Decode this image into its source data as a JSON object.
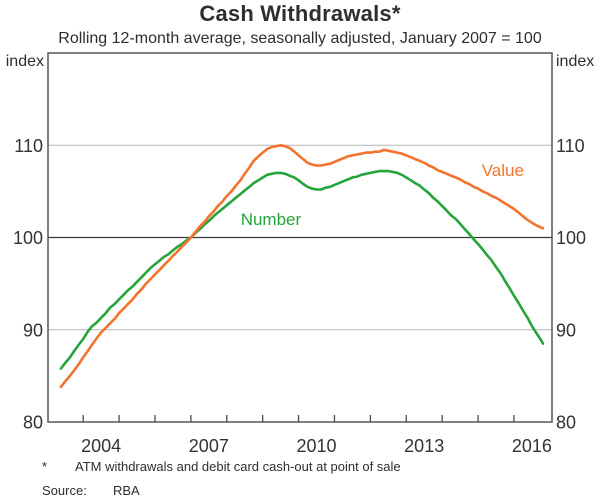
{
  "chart_data": {
    "type": "line",
    "title": "Cash Withdrawals*",
    "subtitle": "Rolling 12-month average, seasonally adjusted, January 2007 = 100",
    "ylabel": "index",
    "ylim": [
      80,
      120
    ],
    "yticks": [
      80,
      90,
      100,
      110
    ],
    "gridlines": [
      90,
      110
    ],
    "reference_line": 100,
    "xlim": [
      2003.02,
      2017.06
    ],
    "xticks_years": [
      2004,
      2005,
      2006,
      2007,
      2008,
      2009,
      2010,
      2011,
      2012,
      2013,
      2014,
      2015,
      2016
    ],
    "x_label_years": [
      "2004",
      "2007",
      "2010",
      "2013",
      "2016"
    ],
    "legend_position": "inline-labels",
    "grid_on": true,
    "series": [
      {
        "name": "Number",
        "color": "#26a43c",
        "label_x": 2009.23,
        "label_y": 102.0,
        "points": [
          [
            2003.38,
            85.8
          ],
          [
            2003.5,
            86.4
          ],
          [
            2003.63,
            87.0
          ],
          [
            2003.75,
            87.7
          ],
          [
            2003.88,
            88.4
          ],
          [
            2004.0,
            89.0
          ],
          [
            2004.13,
            89.8
          ],
          [
            2004.25,
            90.4
          ],
          [
            2004.38,
            90.8
          ],
          [
            2004.5,
            91.3
          ],
          [
            2004.63,
            91.8
          ],
          [
            2004.75,
            92.4
          ],
          [
            2004.88,
            92.8
          ],
          [
            2005.0,
            93.3
          ],
          [
            2005.13,
            93.8
          ],
          [
            2005.25,
            94.3
          ],
          [
            2005.38,
            94.7
          ],
          [
            2005.5,
            95.2
          ],
          [
            2005.63,
            95.7
          ],
          [
            2005.75,
            96.2
          ],
          [
            2005.88,
            96.7
          ],
          [
            2006.0,
            97.1
          ],
          [
            2006.13,
            97.5
          ],
          [
            2006.25,
            97.9
          ],
          [
            2006.38,
            98.2
          ],
          [
            2006.5,
            98.6
          ],
          [
            2006.63,
            99.0
          ],
          [
            2006.75,
            99.3
          ],
          [
            2006.88,
            99.7
          ],
          [
            2007.0,
            100.0
          ],
          [
            2007.13,
            100.5
          ],
          [
            2007.25,
            100.9
          ],
          [
            2007.38,
            101.4
          ],
          [
            2007.5,
            101.8
          ],
          [
            2007.63,
            102.3
          ],
          [
            2007.75,
            102.7
          ],
          [
            2007.88,
            103.1
          ],
          [
            2008.0,
            103.5
          ],
          [
            2008.13,
            103.9
          ],
          [
            2008.25,
            104.3
          ],
          [
            2008.38,
            104.7
          ],
          [
            2008.5,
            105.1
          ],
          [
            2008.63,
            105.5
          ],
          [
            2008.75,
            105.9
          ],
          [
            2008.88,
            106.2
          ],
          [
            2009.0,
            106.5
          ],
          [
            2009.13,
            106.8
          ],
          [
            2009.25,
            106.9
          ],
          [
            2009.38,
            107.0
          ],
          [
            2009.5,
            107.0
          ],
          [
            2009.63,
            106.9
          ],
          [
            2009.75,
            106.7
          ],
          [
            2009.88,
            106.5
          ],
          [
            2010.0,
            106.2
          ],
          [
            2010.13,
            105.8
          ],
          [
            2010.25,
            105.5
          ],
          [
            2010.38,
            105.3
          ],
          [
            2010.5,
            105.2
          ],
          [
            2010.63,
            105.2
          ],
          [
            2010.75,
            105.4
          ],
          [
            2010.88,
            105.5
          ],
          [
            2011.0,
            105.7
          ],
          [
            2011.13,
            105.9
          ],
          [
            2011.25,
            106.1
          ],
          [
            2011.38,
            106.3
          ],
          [
            2011.5,
            106.5
          ],
          [
            2011.63,
            106.6
          ],
          [
            2011.75,
            106.8
          ],
          [
            2011.88,
            106.9
          ],
          [
            2012.0,
            107.0
          ],
          [
            2012.13,
            107.1
          ],
          [
            2012.25,
            107.2
          ],
          [
            2012.38,
            107.2
          ],
          [
            2012.5,
            107.2
          ],
          [
            2012.63,
            107.1
          ],
          [
            2012.75,
            107.0
          ],
          [
            2012.88,
            106.8
          ],
          [
            2013.0,
            106.5
          ],
          [
            2013.13,
            106.2
          ],
          [
            2013.25,
            105.9
          ],
          [
            2013.38,
            105.6
          ],
          [
            2013.5,
            105.2
          ],
          [
            2013.63,
            104.8
          ],
          [
            2013.75,
            104.3
          ],
          [
            2013.88,
            103.9
          ],
          [
            2014.0,
            103.4
          ],
          [
            2014.13,
            102.9
          ],
          [
            2014.25,
            102.4
          ],
          [
            2014.38,
            102.0
          ],
          [
            2014.5,
            101.5
          ],
          [
            2014.63,
            100.9
          ],
          [
            2014.75,
            100.4
          ],
          [
            2014.88,
            99.8
          ],
          [
            2015.0,
            99.3
          ],
          [
            2015.13,
            98.7
          ],
          [
            2015.25,
            98.1
          ],
          [
            2015.38,
            97.5
          ],
          [
            2015.5,
            96.8
          ],
          [
            2015.63,
            96.1
          ],
          [
            2015.75,
            95.3
          ],
          [
            2015.88,
            94.5
          ],
          [
            2016.0,
            93.7
          ],
          [
            2016.13,
            92.9
          ],
          [
            2016.25,
            92.1
          ],
          [
            2016.38,
            91.3
          ],
          [
            2016.5,
            90.4
          ],
          [
            2016.63,
            89.6
          ],
          [
            2016.75,
            88.9
          ],
          [
            2016.81,
            88.5
          ]
        ]
      },
      {
        "name": "Value",
        "color": "#f3732e",
        "label_x": 2015.69,
        "label_y": 107.3,
        "points": [
          [
            2003.38,
            83.8
          ],
          [
            2003.5,
            84.4
          ],
          [
            2003.63,
            85.0
          ],
          [
            2003.75,
            85.6
          ],
          [
            2003.88,
            86.3
          ],
          [
            2004.0,
            87.0
          ],
          [
            2004.13,
            87.7
          ],
          [
            2004.25,
            88.4
          ],
          [
            2004.38,
            89.1
          ],
          [
            2004.5,
            89.7
          ],
          [
            2004.63,
            90.2
          ],
          [
            2004.75,
            90.7
          ],
          [
            2004.88,
            91.2
          ],
          [
            2005.0,
            91.8
          ],
          [
            2005.13,
            92.3
          ],
          [
            2005.25,
            92.8
          ],
          [
            2005.38,
            93.3
          ],
          [
            2005.5,
            93.9
          ],
          [
            2005.63,
            94.4
          ],
          [
            2005.75,
            95.0
          ],
          [
            2005.88,
            95.5
          ],
          [
            2006.0,
            96.0
          ],
          [
            2006.13,
            96.5
          ],
          [
            2006.25,
            97.0
          ],
          [
            2006.38,
            97.5
          ],
          [
            2006.5,
            98.0
          ],
          [
            2006.63,
            98.5
          ],
          [
            2006.75,
            99.0
          ],
          [
            2006.88,
            99.5
          ],
          [
            2007.0,
            100.0
          ],
          [
            2007.13,
            100.6
          ],
          [
            2007.25,
            101.2
          ],
          [
            2007.38,
            101.7
          ],
          [
            2007.5,
            102.3
          ],
          [
            2007.63,
            102.8
          ],
          [
            2007.75,
            103.4
          ],
          [
            2007.88,
            103.9
          ],
          [
            2008.0,
            104.5
          ],
          [
            2008.13,
            105.0
          ],
          [
            2008.25,
            105.6
          ],
          [
            2008.38,
            106.2
          ],
          [
            2008.5,
            106.9
          ],
          [
            2008.63,
            107.6
          ],
          [
            2008.75,
            108.3
          ],
          [
            2008.88,
            108.8
          ],
          [
            2009.0,
            109.2
          ],
          [
            2009.13,
            109.6
          ],
          [
            2009.25,
            109.8
          ],
          [
            2009.38,
            109.9
          ],
          [
            2009.5,
            110.0
          ],
          [
            2009.63,
            109.9
          ],
          [
            2009.75,
            109.7
          ],
          [
            2009.88,
            109.3
          ],
          [
            2010.0,
            108.9
          ],
          [
            2010.13,
            108.5
          ],
          [
            2010.25,
            108.1
          ],
          [
            2010.38,
            107.9
          ],
          [
            2010.5,
            107.8
          ],
          [
            2010.63,
            107.8
          ],
          [
            2010.75,
            107.9
          ],
          [
            2010.88,
            108.0
          ],
          [
            2011.0,
            108.2
          ],
          [
            2011.13,
            108.4
          ],
          [
            2011.25,
            108.6
          ],
          [
            2011.38,
            108.8
          ],
          [
            2011.5,
            108.9
          ],
          [
            2011.63,
            109.0
          ],
          [
            2011.75,
            109.1
          ],
          [
            2011.88,
            109.2
          ],
          [
            2012.0,
            109.2
          ],
          [
            2012.13,
            109.3
          ],
          [
            2012.25,
            109.3
          ],
          [
            2012.38,
            109.5
          ],
          [
            2012.5,
            109.4
          ],
          [
            2012.63,
            109.3
          ],
          [
            2012.75,
            109.2
          ],
          [
            2012.88,
            109.1
          ],
          [
            2013.0,
            108.9
          ],
          [
            2013.13,
            108.7
          ],
          [
            2013.25,
            108.5
          ],
          [
            2013.38,
            108.3
          ],
          [
            2013.5,
            108.1
          ],
          [
            2013.63,
            107.8
          ],
          [
            2013.75,
            107.6
          ],
          [
            2013.88,
            107.3
          ],
          [
            2014.0,
            107.1
          ],
          [
            2014.13,
            106.9
          ],
          [
            2014.25,
            106.7
          ],
          [
            2014.38,
            106.5
          ],
          [
            2014.5,
            106.3
          ],
          [
            2014.63,
            106.0
          ],
          [
            2014.75,
            105.8
          ],
          [
            2014.88,
            105.5
          ],
          [
            2015.0,
            105.3
          ],
          [
            2015.13,
            105.0
          ],
          [
            2015.25,
            104.8
          ],
          [
            2015.38,
            104.5
          ],
          [
            2015.5,
            104.3
          ],
          [
            2015.63,
            104.0
          ],
          [
            2015.75,
            103.7
          ],
          [
            2015.88,
            103.4
          ],
          [
            2016.0,
            103.1
          ],
          [
            2016.13,
            102.7
          ],
          [
            2016.25,
            102.3
          ],
          [
            2016.38,
            101.9
          ],
          [
            2016.5,
            101.6
          ],
          [
            2016.63,
            101.3
          ],
          [
            2016.75,
            101.1
          ],
          [
            2016.81,
            101.0
          ]
        ]
      }
    ]
  },
  "colors": {
    "value_line": "#f3732e",
    "number_line": "#26a43c",
    "grid": "#b5b5b5",
    "reference": "#3a3a3a",
    "frame": "#4a4a4a",
    "text": "#333333"
  },
  "footer": {
    "footnote_marker": "*",
    "footnote": "ATM withdrawals and debit card cash-out at point of sale",
    "source_label": "Source:",
    "source": "RBA"
  }
}
